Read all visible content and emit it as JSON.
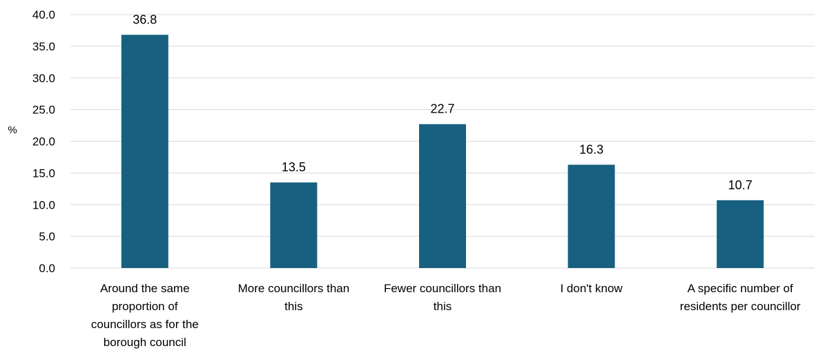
{
  "chart_data": {
    "type": "bar",
    "categories": [
      [
        "Around the same",
        "proportion of",
        "councillors as for the",
        "borough council"
      ],
      [
        "More councillors than",
        "this"
      ],
      [
        "Fewer councillors than",
        "this"
      ],
      [
        "I don't know"
      ],
      [
        "A specific number of",
        "residents per councillor"
      ]
    ],
    "values": [
      36.8,
      13.5,
      22.7,
      16.3,
      10.7
    ],
    "data_labels": [
      "36.8",
      "13.5",
      "22.7",
      "16.3",
      "10.7"
    ],
    "ylabel": "%",
    "ylim": [
      0,
      40
    ],
    "yticks": [
      "0.0",
      "5.0",
      "10.0",
      "15.0",
      "20.0",
      "25.0",
      "30.0",
      "35.0",
      "40.0"
    ],
    "bar_color": "#17607f",
    "grid": true,
    "legend": "none"
  }
}
